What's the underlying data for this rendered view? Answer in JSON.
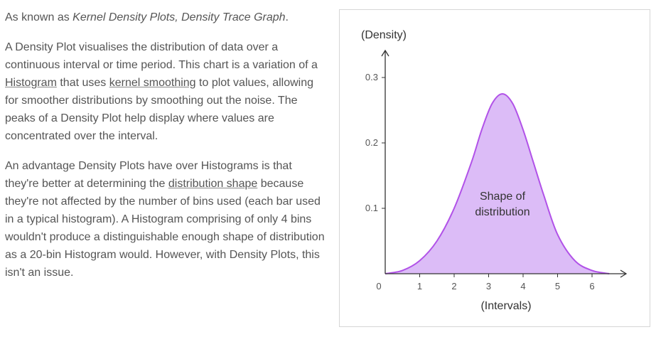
{
  "aka": {
    "prefix": "As known as ",
    "names": "Kernel Density Plots, Density Trace Graph",
    "suffix": "."
  },
  "paragraph1": {
    "part1": "A Density Plot visualises the distribution of data over a continuous interval or time period. This chart is a variation of a ",
    "link1": "Histogram",
    "part2": " that uses ",
    "link2": "kernel smoothing",
    "part3": " to plot values, allowing for smoother distributions by smoothing out the noise. The peaks of a Density Plot help display where values are concentrated over the interval."
  },
  "paragraph2": {
    "part1": "An advantage Density Plots have over Histograms is that they're better at determining the ",
    "link1": "distribution shape",
    "part2": " because they're not affected by the number of bins used (each bar used in a typical histogram). A Histogram comprising of only 4 bins wouldn't produce a distinguishable enough shape of distribution as a 20-bin Histogram would. However, with Density Plots, this isn't an issue."
  },
  "chart_data": {
    "type": "area",
    "title": "",
    "xlabel": "(Intervals)",
    "ylabel": "(Density)",
    "annotation": [
      "Shape of",
      "distribution"
    ],
    "x_ticks": [
      "0",
      "1",
      "2",
      "3",
      "4",
      "5",
      "6"
    ],
    "y_ticks": [
      "0.1",
      "0.2",
      "0.3"
    ],
    "xlim": [
      0,
      7
    ],
    "ylim": [
      0,
      0.33
    ],
    "fill_color": "#dcbcf7",
    "line_color": "#b152e8",
    "x": [
      0,
      0.5,
      1,
      1.5,
      2,
      2.5,
      2.8,
      3.1,
      3.4,
      3.7,
      4,
      4.3,
      4.6,
      5,
      5.5,
      6,
      6.5
    ],
    "y": [
      0,
      0.005,
      0.02,
      0.05,
      0.1,
      0.17,
      0.22,
      0.26,
      0.275,
      0.26,
      0.22,
      0.17,
      0.12,
      0.06,
      0.02,
      0.005,
      0
    ]
  }
}
